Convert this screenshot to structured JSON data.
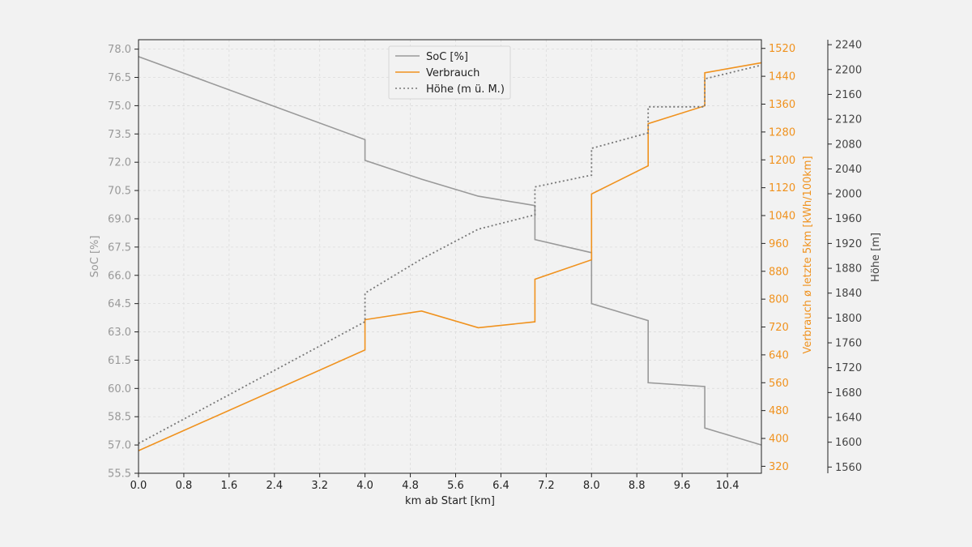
{
  "chart_data": {
    "type": "line",
    "xlabel": "km ab Start [km]",
    "x_ticks": [
      "0.0",
      "0.8",
      "1.6",
      "2.4",
      "3.2",
      "4.0",
      "4.8",
      "5.6",
      "6.4",
      "7.2",
      "8.0",
      "8.8",
      "9.6",
      "10.4"
    ],
    "xlim": [
      0,
      11
    ],
    "grid": true,
    "legend_position": "top-center",
    "axes": {
      "soc": {
        "label": "SoC [%]",
        "ylim": [
          55.5,
          78.5
        ],
        "ticks": [
          "55.5",
          "57.0",
          "58.5",
          "60.0",
          "61.5",
          "63.0",
          "64.5",
          "66.0",
          "67.5",
          "69.0",
          "70.5",
          "72.0",
          "73.5",
          "75.0",
          "76.5",
          "78.0"
        ],
        "color": "#999999"
      },
      "verbrauch": {
        "label": "Verbrauch ø letzte 5km [kWh/100km]",
        "ylim": [
          300,
          1545
        ],
        "ticks": [
          "320",
          "400",
          "480",
          "560",
          "640",
          "720",
          "800",
          "880",
          "960",
          "1040",
          "1120",
          "1200",
          "1280",
          "1360",
          "1440",
          "1520"
        ],
        "color": "#f0921e"
      },
      "hoehe": {
        "label": "Höhe [m]",
        "ylim": [
          1550,
          2248
        ],
        "ticks": [
          "1560",
          "1600",
          "1640",
          "1680",
          "1720",
          "1760",
          "1800",
          "1840",
          "1880",
          "1920",
          "1960",
          "2000",
          "2040",
          "2080",
          "2120",
          "2160",
          "2200",
          "2240"
        ],
        "color": "#444444"
      }
    },
    "series": [
      {
        "name": "SoC [%]",
        "axis": "soc",
        "color": "#999999",
        "style": "solid",
        "x": [
          0,
          4,
          4,
          5,
          6,
          7,
          7,
          8,
          8,
          9,
          9,
          10,
          10,
          11
        ],
        "y": [
          77.6,
          73.2,
          72.1,
          71.1,
          70.2,
          69.7,
          67.9,
          67.2,
          64.5,
          63.6,
          60.3,
          60.1,
          57.9,
          57.0
        ]
      },
      {
        "name": "Verbrauch",
        "axis": "verbrauch",
        "color": "#f0921e",
        "style": "solid",
        "x": [
          0,
          4,
          4,
          5,
          6,
          7,
          7,
          8,
          8,
          9,
          9,
          10,
          10,
          11
        ],
        "y": [
          365,
          654,
          741,
          766,
          718,
          735,
          857,
          913,
          1102,
          1183,
          1304,
          1355,
          1450,
          1479
        ]
      },
      {
        "name": "Höhe (m ü. M.)",
        "axis": "hoehe",
        "color": "#777777",
        "style": "dotted",
        "x": [
          0,
          4,
          4,
          5,
          6,
          7,
          7,
          8,
          8,
          9,
          9,
          10,
          10,
          11
        ],
        "y": [
          1598,
          1794,
          1840,
          1895,
          1943,
          1966,
          2011,
          2030,
          2073,
          2098,
          2140,
          2140,
          2185,
          2207
        ]
      }
    ]
  }
}
